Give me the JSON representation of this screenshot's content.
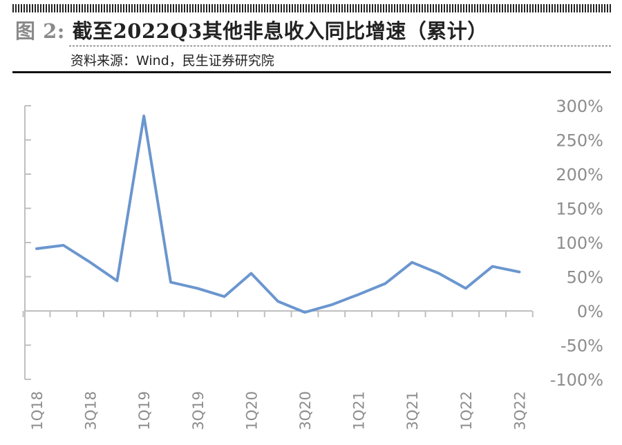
{
  "header": {
    "fig_label": "图 2:",
    "title": "截至2022Q3其他非息收入同比增速（累计）",
    "source": "资料来源：Wind，民生证券研究院"
  },
  "colors": {
    "line": "#6b96cf",
    "axis": "#bfbfbf",
    "tick_text": "#8c8c8c"
  },
  "chart_data": {
    "type": "line",
    "title": "截至2022Q3其他非息收入同比增速（累计）",
    "xlabel": "",
    "ylabel": "",
    "y_unit": "%",
    "ylim": [
      -100,
      300
    ],
    "y_ticks": [
      300,
      250,
      200,
      150,
      100,
      50,
      0,
      -50,
      -100
    ],
    "y_tick_labels": [
      "300%",
      "250%",
      "200%",
      "150%",
      "100%",
      "50%",
      "0%",
      "-50%",
      "-100%"
    ],
    "y_axis_position": "right",
    "grid": false,
    "legend": "none",
    "categories": [
      "1Q18",
      "2Q18",
      "3Q18",
      "4Q18",
      "1Q19",
      "2Q19",
      "3Q19",
      "4Q19",
      "1Q20",
      "2Q20",
      "3Q20",
      "4Q20",
      "1Q21",
      "2Q21",
      "3Q21",
      "4Q21",
      "1Q22",
      "2Q22",
      "3Q22"
    ],
    "x_tick_labels": [
      "1Q18",
      "3Q18",
      "1Q19",
      "3Q19",
      "1Q20",
      "3Q20",
      "1Q21",
      "3Q21",
      "1Q22",
      "3Q22"
    ],
    "series": [
      {
        "values": [
          91,
          96,
          71,
          44,
          285,
          42,
          33,
          21,
          55,
          14,
          -2,
          9,
          24,
          40,
          71,
          55,
          33,
          65,
          57
        ]
      }
    ]
  }
}
